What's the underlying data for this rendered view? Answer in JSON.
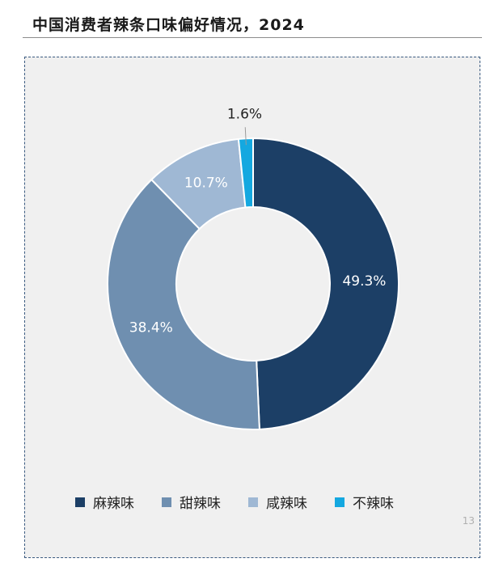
{
  "title": "中国消费者辣条口味偏好情况，2024",
  "page_number": "13",
  "chart_data": {
    "type": "pie",
    "variant": "donut",
    "title": "中国消费者辣条口味偏好情况，2024",
    "categories": [
      "麻辣味",
      "甜辣味",
      "咸辣味",
      "不辣味"
    ],
    "values": [
      49.3,
      38.4,
      10.7,
      1.6
    ],
    "labels": [
      "49.3%",
      "38.4%",
      "10.7%",
      "1.6%"
    ],
    "colors": [
      "#1c3f66",
      "#6f8fb0",
      "#9fb8d4",
      "#14a8e0"
    ],
    "label_colors": [
      "#ffffff",
      "#ffffff",
      "#ffffff",
      "#222222"
    ],
    "legend_position": "bottom"
  }
}
